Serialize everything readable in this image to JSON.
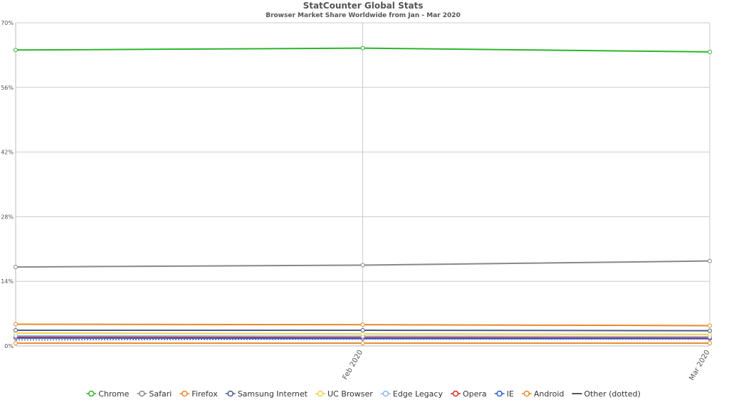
{
  "chart_data": {
    "type": "line",
    "title": "StatCounter Global Stats",
    "subtitle": "Browser Market Share Worldwide from Jan - Mar 2020",
    "x": [
      "",
      "Feb 2020",
      "Mar 2020"
    ],
    "ylim": [
      0,
      70
    ],
    "yticks": [
      "0%",
      "14%",
      "28%",
      "42%",
      "56%",
      "70%"
    ],
    "ytick_values": [
      0,
      14,
      28,
      42,
      56,
      70
    ],
    "grid": true,
    "legend_position": "bottom",
    "series": [
      {
        "name": "Chrome",
        "color": "#2ab52a",
        "values": [
          64.1,
          64.5,
          63.7
        ]
      },
      {
        "name": "Safari",
        "color": "#888888",
        "values": [
          17.1,
          17.5,
          18.4
        ]
      },
      {
        "name": "Firefox",
        "color": "#e8892c",
        "values": [
          4.7,
          4.6,
          4.4
        ]
      },
      {
        "name": "Samsung Internet",
        "color": "#4a5a8a",
        "values": [
          3.4,
          3.4,
          3.3
        ]
      },
      {
        "name": "UC Browser",
        "color": "#f2d24a",
        "values": [
          2.8,
          2.6,
          2.5
        ]
      },
      {
        "name": "Edge Legacy",
        "color": "#8db8e8",
        "values": [
          2.2,
          2.1,
          2.0
        ]
      },
      {
        "name": "Opera",
        "color": "#d42a2a",
        "values": [
          2.0,
          1.9,
          1.8
        ]
      },
      {
        "name": "IE",
        "color": "#2a5ad4",
        "values": [
          1.7,
          1.6,
          1.6
        ]
      },
      {
        "name": "Android",
        "color": "#e8892c",
        "values": [
          0.6,
          0.6,
          0.6
        ]
      },
      {
        "name": "Other (dotted)",
        "color": "#666666",
        "dashed": true,
        "values": [
          1.3,
          1.5,
          1.5
        ]
      }
    ]
  }
}
